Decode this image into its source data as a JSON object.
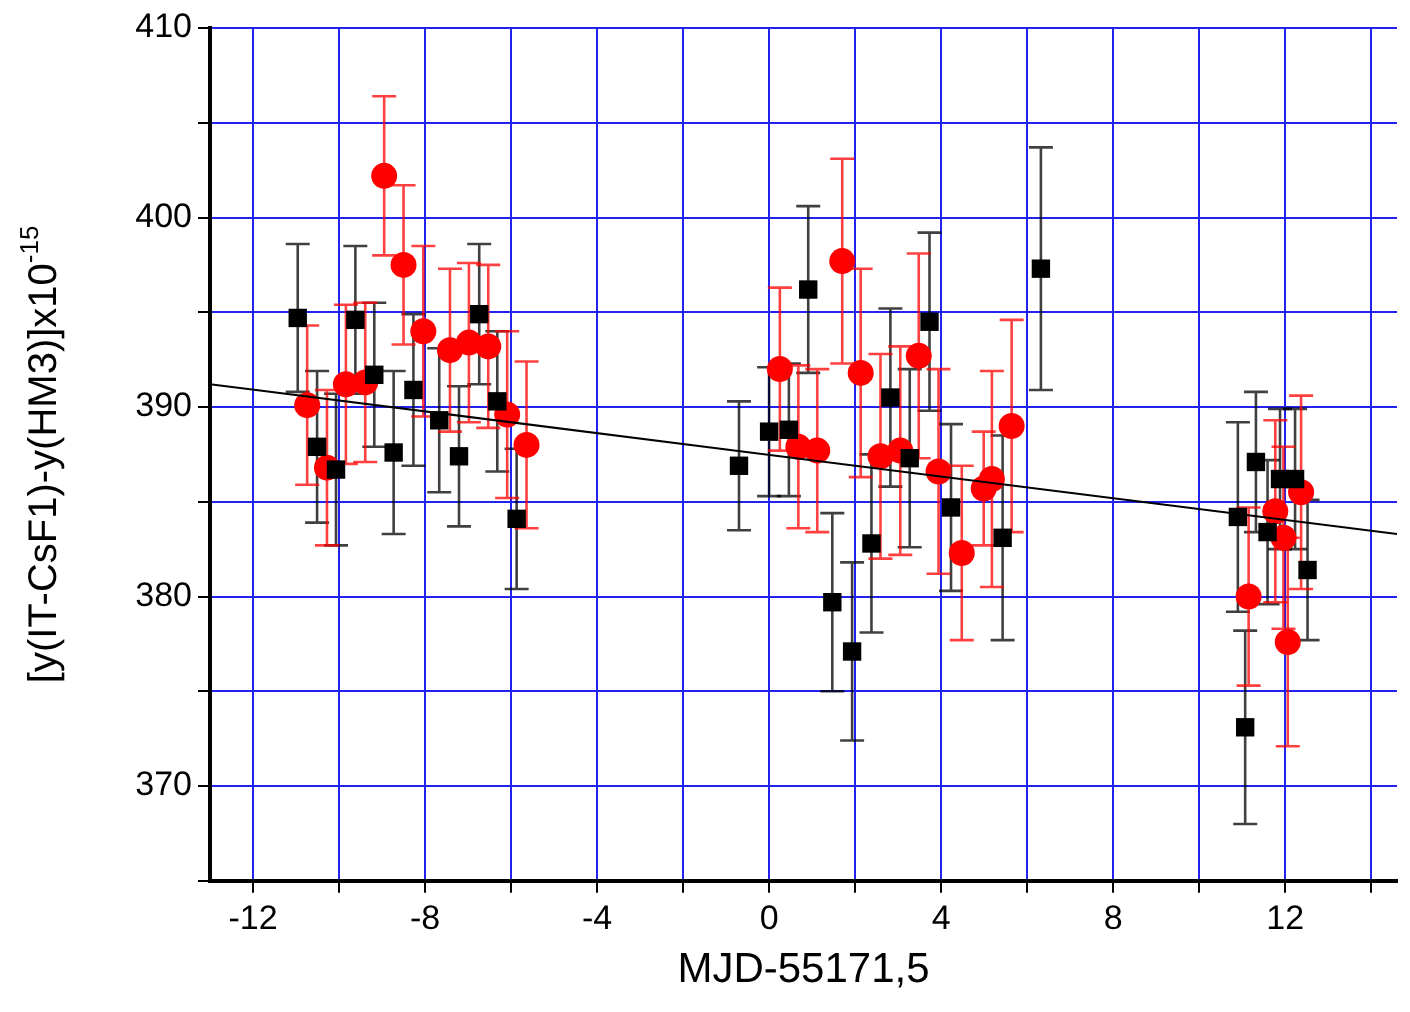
{
  "chart_data": {
    "type": "scatter",
    "xlabel": "MJD-55171,5",
    "ylabel": "[y(IT-CsF1)-y(HM3)]x10$^{-15}$",
    "xlim": [
      -13,
      14.6
    ],
    "ylim": [
      365,
      410
    ],
    "xticks": [
      -12,
      {
        "value": -10,
        "label": null
      },
      -8,
      {
        "value": -6,
        "label": null
      },
      -4,
      {
        "value": -2,
        "label": null
      },
      0,
      {
        "value": 2,
        "label": null
      },
      4,
      {
        "value": 6,
        "label": null
      },
      8,
      {
        "value": 10,
        "label": null
      },
      12,
      {
        "value": 14,
        "label": null
      }
    ],
    "yticks": [
      {
        "value": 365,
        "label": null
      },
      370,
      {
        "value": 375,
        "label": null
      },
      380,
      {
        "value": 385,
        "label": null
      },
      390,
      {
        "value": 395,
        "label": null
      },
      400,
      {
        "value": 405,
        "label": null
      },
      410
    ],
    "grid": true,
    "series": [
      {
        "type": "scatter",
        "color": "#000000",
        "marker": "square",
        "x": [
          -10.96,
          -10.51,
          -10.07,
          -9.62,
          -9.18,
          -8.73,
          -8.27,
          -7.67,
          -7.21,
          -6.74,
          -6.32,
          -5.87,
          -0.7,
          0.0,
          0.46,
          0.91,
          1.47,
          1.93,
          2.38,
          2.82,
          3.27,
          3.73,
          4.23,
          5.43,
          6.32,
          10.9,
          11.07,
          11.32,
          11.59,
          11.88,
          12.23,
          12.52
        ],
        "values": [
          394.7,
          387.9,
          386.7,
          394.6,
          391.7,
          387.6,
          390.9,
          389.3,
          387.4,
          394.9,
          390.3,
          384.1,
          386.9,
          388.7,
          388.8,
          396.2,
          379.7,
          377.1,
          382.8,
          390.5,
          387.3,
          394.5,
          384.7,
          383.1,
          397.3,
          384.2,
          373.1,
          387.1,
          383.4,
          386.2,
          386.2,
          381.4
        ],
        "errors": [
          3.9,
          4,
          4,
          3.9,
          3.8,
          4.3,
          4,
          3.8,
          3.7,
          3.7,
          3.7,
          3.7,
          3.4,
          3.4,
          3.5,
          4.4,
          4.7,
          4.7,
          4.7,
          4.7,
          4.7,
          4.7,
          4.4,
          5.4,
          6.4,
          5,
          5.1,
          3.7,
          3.8,
          3.7,
          3.7,
          3.7
        ]
      },
      {
        "type": "scatter",
        "color": "#ff0000",
        "marker": "circle",
        "x": [
          -10.74,
          -10.28,
          -9.84,
          -9.39,
          -8.95,
          -8.5,
          -8.04,
          -7.42,
          -6.98,
          -6.53,
          -6.09,
          -5.64,
          0.25,
          0.68,
          1.12,
          1.7,
          2.13,
          2.59,
          3.05,
          3.48,
          3.94,
          4.48,
          4.99,
          5.18,
          5.64,
          11.15,
          11.77,
          11.96,
          12.06,
          12.37
        ],
        "values": [
          390.1,
          386.8,
          391.2,
          391.3,
          402.2,
          397.5,
          394.0,
          393.0,
          393.4,
          393.2,
          389.6,
          388.0,
          392.0,
          387.9,
          387.7,
          397.7,
          391.8,
          387.4,
          387.7,
          392.7,
          386.6,
          382.3,
          385.7,
          386.2,
          389.0,
          380.0,
          384.5,
          383.1,
          377.6,
          385.5
        ],
        "errors": [
          4.2,
          4.1,
          4.2,
          4.2,
          4.2,
          4.2,
          4.5,
          4.3,
          4.2,
          4.3,
          4.4,
          4.4,
          4.3,
          4.3,
          4.3,
          5.4,
          5.5,
          5.4,
          5.5,
          5.4,
          5.4,
          4.6,
          3,
          5.7,
          5.6,
          4.7,
          4.8,
          4.8,
          5.5,
          5.1
        ]
      },
      {
        "type": "line",
        "color": "#000000",
        "marker": "none",
        "x": [
          -13,
          14.6
        ],
        "values": [
          391.2,
          383.3
        ]
      }
    ]
  }
}
